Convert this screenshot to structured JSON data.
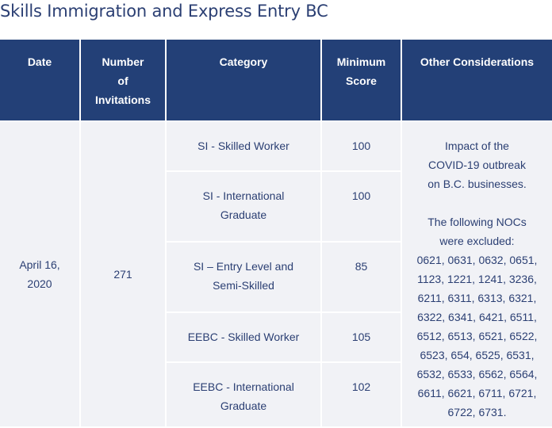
{
  "page": {
    "title": "Skills Immigration and Express Entry BC"
  },
  "table": {
    "headers": {
      "date": "Date",
      "invitations_line1": "Number",
      "invitations_line2": "of",
      "invitations_line3": "Invitations",
      "category": "Category",
      "min_line1": "Minimum",
      "min_line2": "Score",
      "other": "Other Considerations"
    },
    "date_line1": "April 16,",
    "date_line2": "2020",
    "invitations": "271",
    "rows": [
      {
        "category_line1": "SI - Skilled Worker",
        "category_line2": "",
        "score": "100"
      },
      {
        "category_line1": "SI - International",
        "category_line2": "Graduate",
        "score": "100"
      },
      {
        "category_line1": "SI – Entry Level and",
        "category_line2": "Semi-Skilled",
        "score": "85"
      },
      {
        "category_line1": "EEBC - Skilled Worker",
        "category_line2": "",
        "score": "105"
      },
      {
        "category_line1": "EEBC - International",
        "category_line2": "Graduate",
        "score": "102"
      }
    ],
    "other": {
      "impact_line1": "Impact of the",
      "impact_line2": "COVID-19 outbreak",
      "impact_line3": "on B.C. businesses.",
      "nocs_line1": "The following NOCs",
      "nocs_line2": "were excluded:",
      "noc_lines": [
        "0621, 0631, 0632, 0651,",
        "1123, 1221, 1241, 3236,",
        "6211, 6311, 6313, 6321,",
        "6322, 6341, 6421, 6511,",
        "6512, 6513, 6521, 6522,",
        "6523, 654, 6525, 6531,",
        "6532, 6533, 6562, 6564,",
        "6611, 6621, 6711, 6721,",
        "6722, 6731."
      ]
    }
  }
}
